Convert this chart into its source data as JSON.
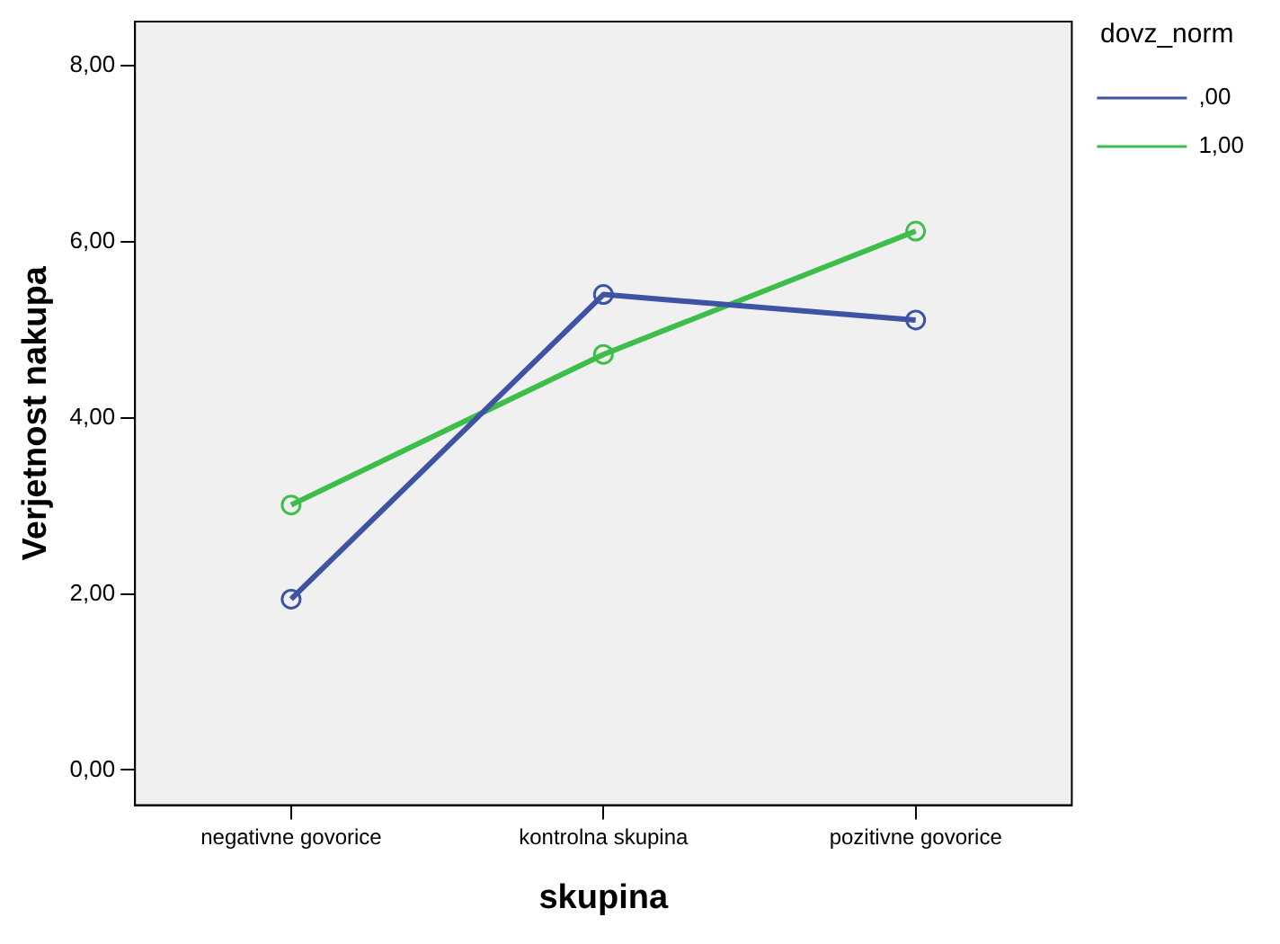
{
  "chart_data": {
    "type": "line",
    "xlabel": "skupina",
    "ylabel": "Verjetnost nakupa",
    "legend_title": "dovz_norm",
    "categories": [
      "negativne govorice",
      "kontrolna skupina",
      "pozitivne govorice"
    ],
    "series": [
      {
        "name": ",00",
        "color": "#3e53a4",
        "values": [
          1.94,
          5.4,
          5.11
        ]
      },
      {
        "name": "1,00",
        "color": "#3dbd4a",
        "values": [
          3.01,
          4.72,
          6.12
        ]
      }
    ],
    "ylim": [
      -0.4,
      8.5
    ],
    "yticks": [
      {
        "value": 0,
        "label": "0,00"
      },
      {
        "value": 2,
        "label": "2,00"
      },
      {
        "value": 4,
        "label": "4,00"
      },
      {
        "value": 6,
        "label": "6,00"
      },
      {
        "value": 8,
        "label": "8,00"
      }
    ],
    "grid": false,
    "legend": "top right",
    "marker": "circle",
    "line_style": "solid"
  }
}
